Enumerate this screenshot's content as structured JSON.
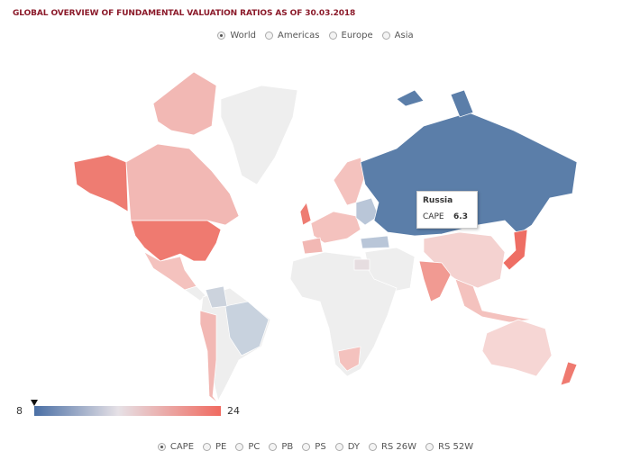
{
  "title": "GLOBAL OVERVIEW OF FUNDAMENTAL VALUATION RATIOS AS OF 30.03.2018",
  "regions": [
    "World",
    "Americas",
    "Europe",
    "Asia"
  ],
  "selected_region": 0,
  "tooltip": {
    "country": "Russia",
    "metric": "CAPE",
    "value": 6.3
  },
  "scale": {
    "min": 8,
    "max": 24
  },
  "metrics": [
    "CAPE",
    "PE",
    "PC",
    "PB",
    "PS",
    "DY",
    "RS 26W",
    "RS 52W"
  ],
  "selected_metric": 0
}
